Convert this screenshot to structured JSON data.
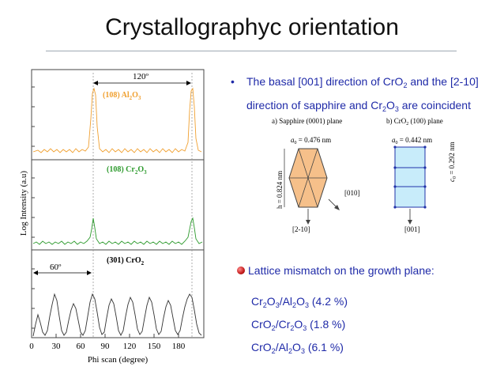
{
  "slide_title": "Crystallographyc orientation",
  "plot": {
    "ylabel": "Log Intensity (a.u)",
    "xlabel": "Phi scan (degree)",
    "xticks": [
      "0",
      "30",
      "60",
      "90",
      "120",
      "150",
      "180"
    ],
    "panels": [
      {
        "label_main": "(108) Al",
        "s1": "2",
        "m1": "O",
        "s2": "3",
        "color": "#f0a030"
      },
      {
        "label_main": "(108) Cr",
        "s1": "2",
        "m1": "O",
        "s2": "3",
        "color": "#2e9b2e"
      },
      {
        "label_main": "(301) CrO",
        "s1": "2",
        "m1": "",
        "s2": "",
        "color": "#333333"
      }
    ],
    "angle_top": "120º",
    "angle_bottom": "60º"
  },
  "bullet1": {
    "p1": "The basal [001] direction of CrO",
    "s1": "2",
    "p2": " and the [2-10] direction of sapphire and Cr",
    "s2": "2",
    "p3": "O",
    "s3": "3",
    "p4": " are coincident"
  },
  "diagram": {
    "a_title": "a) Sapphire (0001) plane",
    "b_title": "b) CrO",
    "b_title_sub": "2",
    "b_title_rest": " (100) plane",
    "a0_sapphire": "a",
    "a0_sapphire_sub": "0",
    "a0_sapphire_val": " = 0.476 nm",
    "a0_cro2": "a",
    "a0_cro2_sub": "0",
    "a0_cro2_val": " = 0.442 nm",
    "h_label": "h = 0.824 nm",
    "c0_label": "c",
    "c0_sub": "0",
    "c0_val": " = 0.292 nm",
    "dir_010": "[010]",
    "dir_2m10": "[2-10]",
    "dir_001": "[001]",
    "hex_color": "#f6c08a",
    "rect_color": "#c8ecfa"
  },
  "bullet2": "Lattice mismatch on the growth plane:",
  "mismatch": [
    {
      "a": "Cr",
      "as": "2",
      "b": "O",
      "bs": "3",
      "c": "/Al",
      "cs": "2",
      "d": "O",
      "ds": "3",
      "val": " (4.2 %)"
    },
    {
      "a": "CrO",
      "as": "2",
      "b": "/Cr",
      "bs": "2",
      "c": "O",
      "cs": "3",
      "d": "",
      "ds": "",
      "val": " (1.8 %)"
    },
    {
      "a": "CrO",
      "as": "2",
      "b": "/Al",
      "bs": "2",
      "c": "O",
      "cs": "3",
      "d": "",
      "ds": "",
      "val": " (6.1 %)"
    }
  ]
}
